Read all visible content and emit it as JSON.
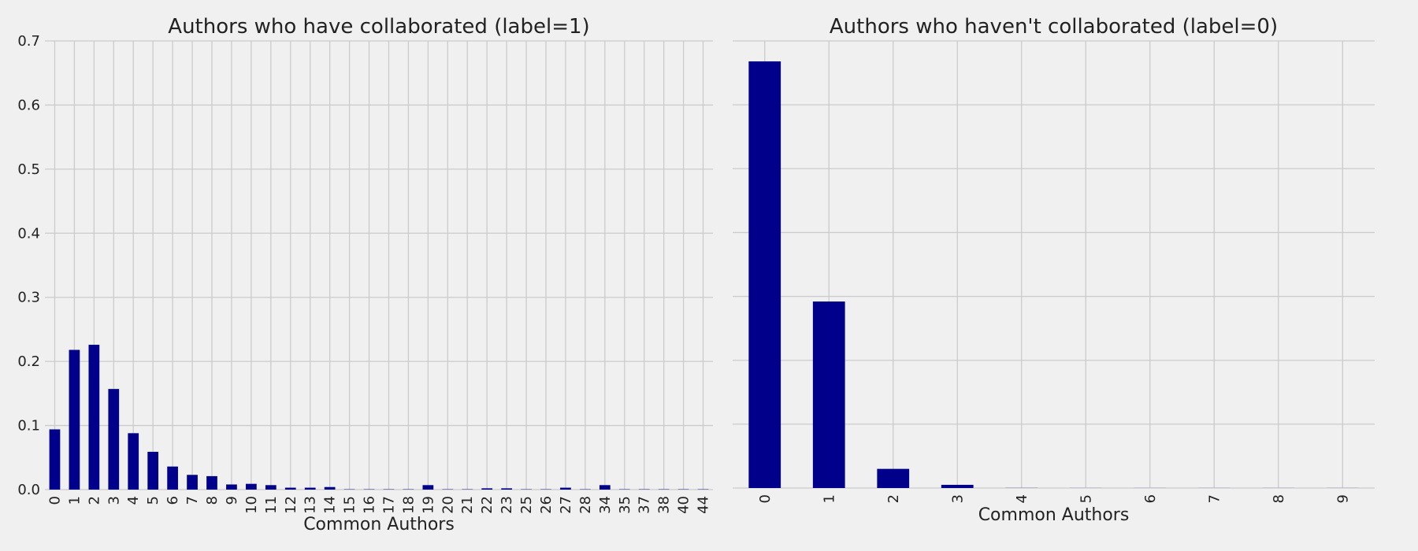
{
  "colors": {
    "background": "#f0f0f0",
    "grid": "#cbcbcb",
    "bar": "#00008b",
    "text": "#222222"
  },
  "chart_data": [
    {
      "type": "bar",
      "title": "Authors who have collaborated (label=1)",
      "xlabel": "Common Authors",
      "ylabel": "",
      "categories": [
        "0",
        "1",
        "2",
        "3",
        "4",
        "5",
        "6",
        "7",
        "8",
        "9",
        "10",
        "11",
        "12",
        "13",
        "14",
        "15",
        "16",
        "17",
        "18",
        "19",
        "20",
        "21",
        "22",
        "23",
        "25",
        "26",
        "27",
        "28",
        "34",
        "35",
        "37",
        "38",
        "40",
        "44"
      ],
      "values": [
        0.094,
        0.218,
        0.226,
        0.157,
        0.088,
        0.059,
        0.036,
        0.023,
        0.021,
        0.008,
        0.009,
        0.007,
        0.003,
        0.003,
        0.004,
        0.0005,
        0.0005,
        0.0005,
        0.0005,
        0.007,
        0.0005,
        0.0005,
        0.002,
        0.002,
        0.0005,
        0.0005,
        0.003,
        0.0005,
        0.007,
        0.0005,
        0.0005,
        0.0005,
        0.0005,
        0.0005
      ],
      "ylim": [
        0,
        0.7
      ],
      "yticks": [
        "0.0",
        "0.1",
        "0.2",
        "0.3",
        "0.4",
        "0.5",
        "0.6",
        "0.7"
      ],
      "grid": true,
      "show_yticks": true,
      "bar_color": "#00008b"
    },
    {
      "type": "bar",
      "title": "Authors who haven't collaborated (label=0)",
      "xlabel": "Common Authors",
      "ylabel": "",
      "categories": [
        "0",
        "1",
        "2",
        "3",
        "4",
        "5",
        "6",
        "7",
        "8",
        "9"
      ],
      "values": [
        0.668,
        0.292,
        0.03,
        0.005,
        0.0002,
        0.0001,
        0.0001,
        0.0001,
        0.0001,
        0.0001
      ],
      "ylim": [
        0,
        0.7
      ],
      "yticks": [
        "0.0",
        "0.1",
        "0.2",
        "0.3",
        "0.4",
        "0.5",
        "0.6",
        "0.7"
      ],
      "grid": true,
      "show_yticks": false,
      "bar_color": "#00008b"
    }
  ]
}
